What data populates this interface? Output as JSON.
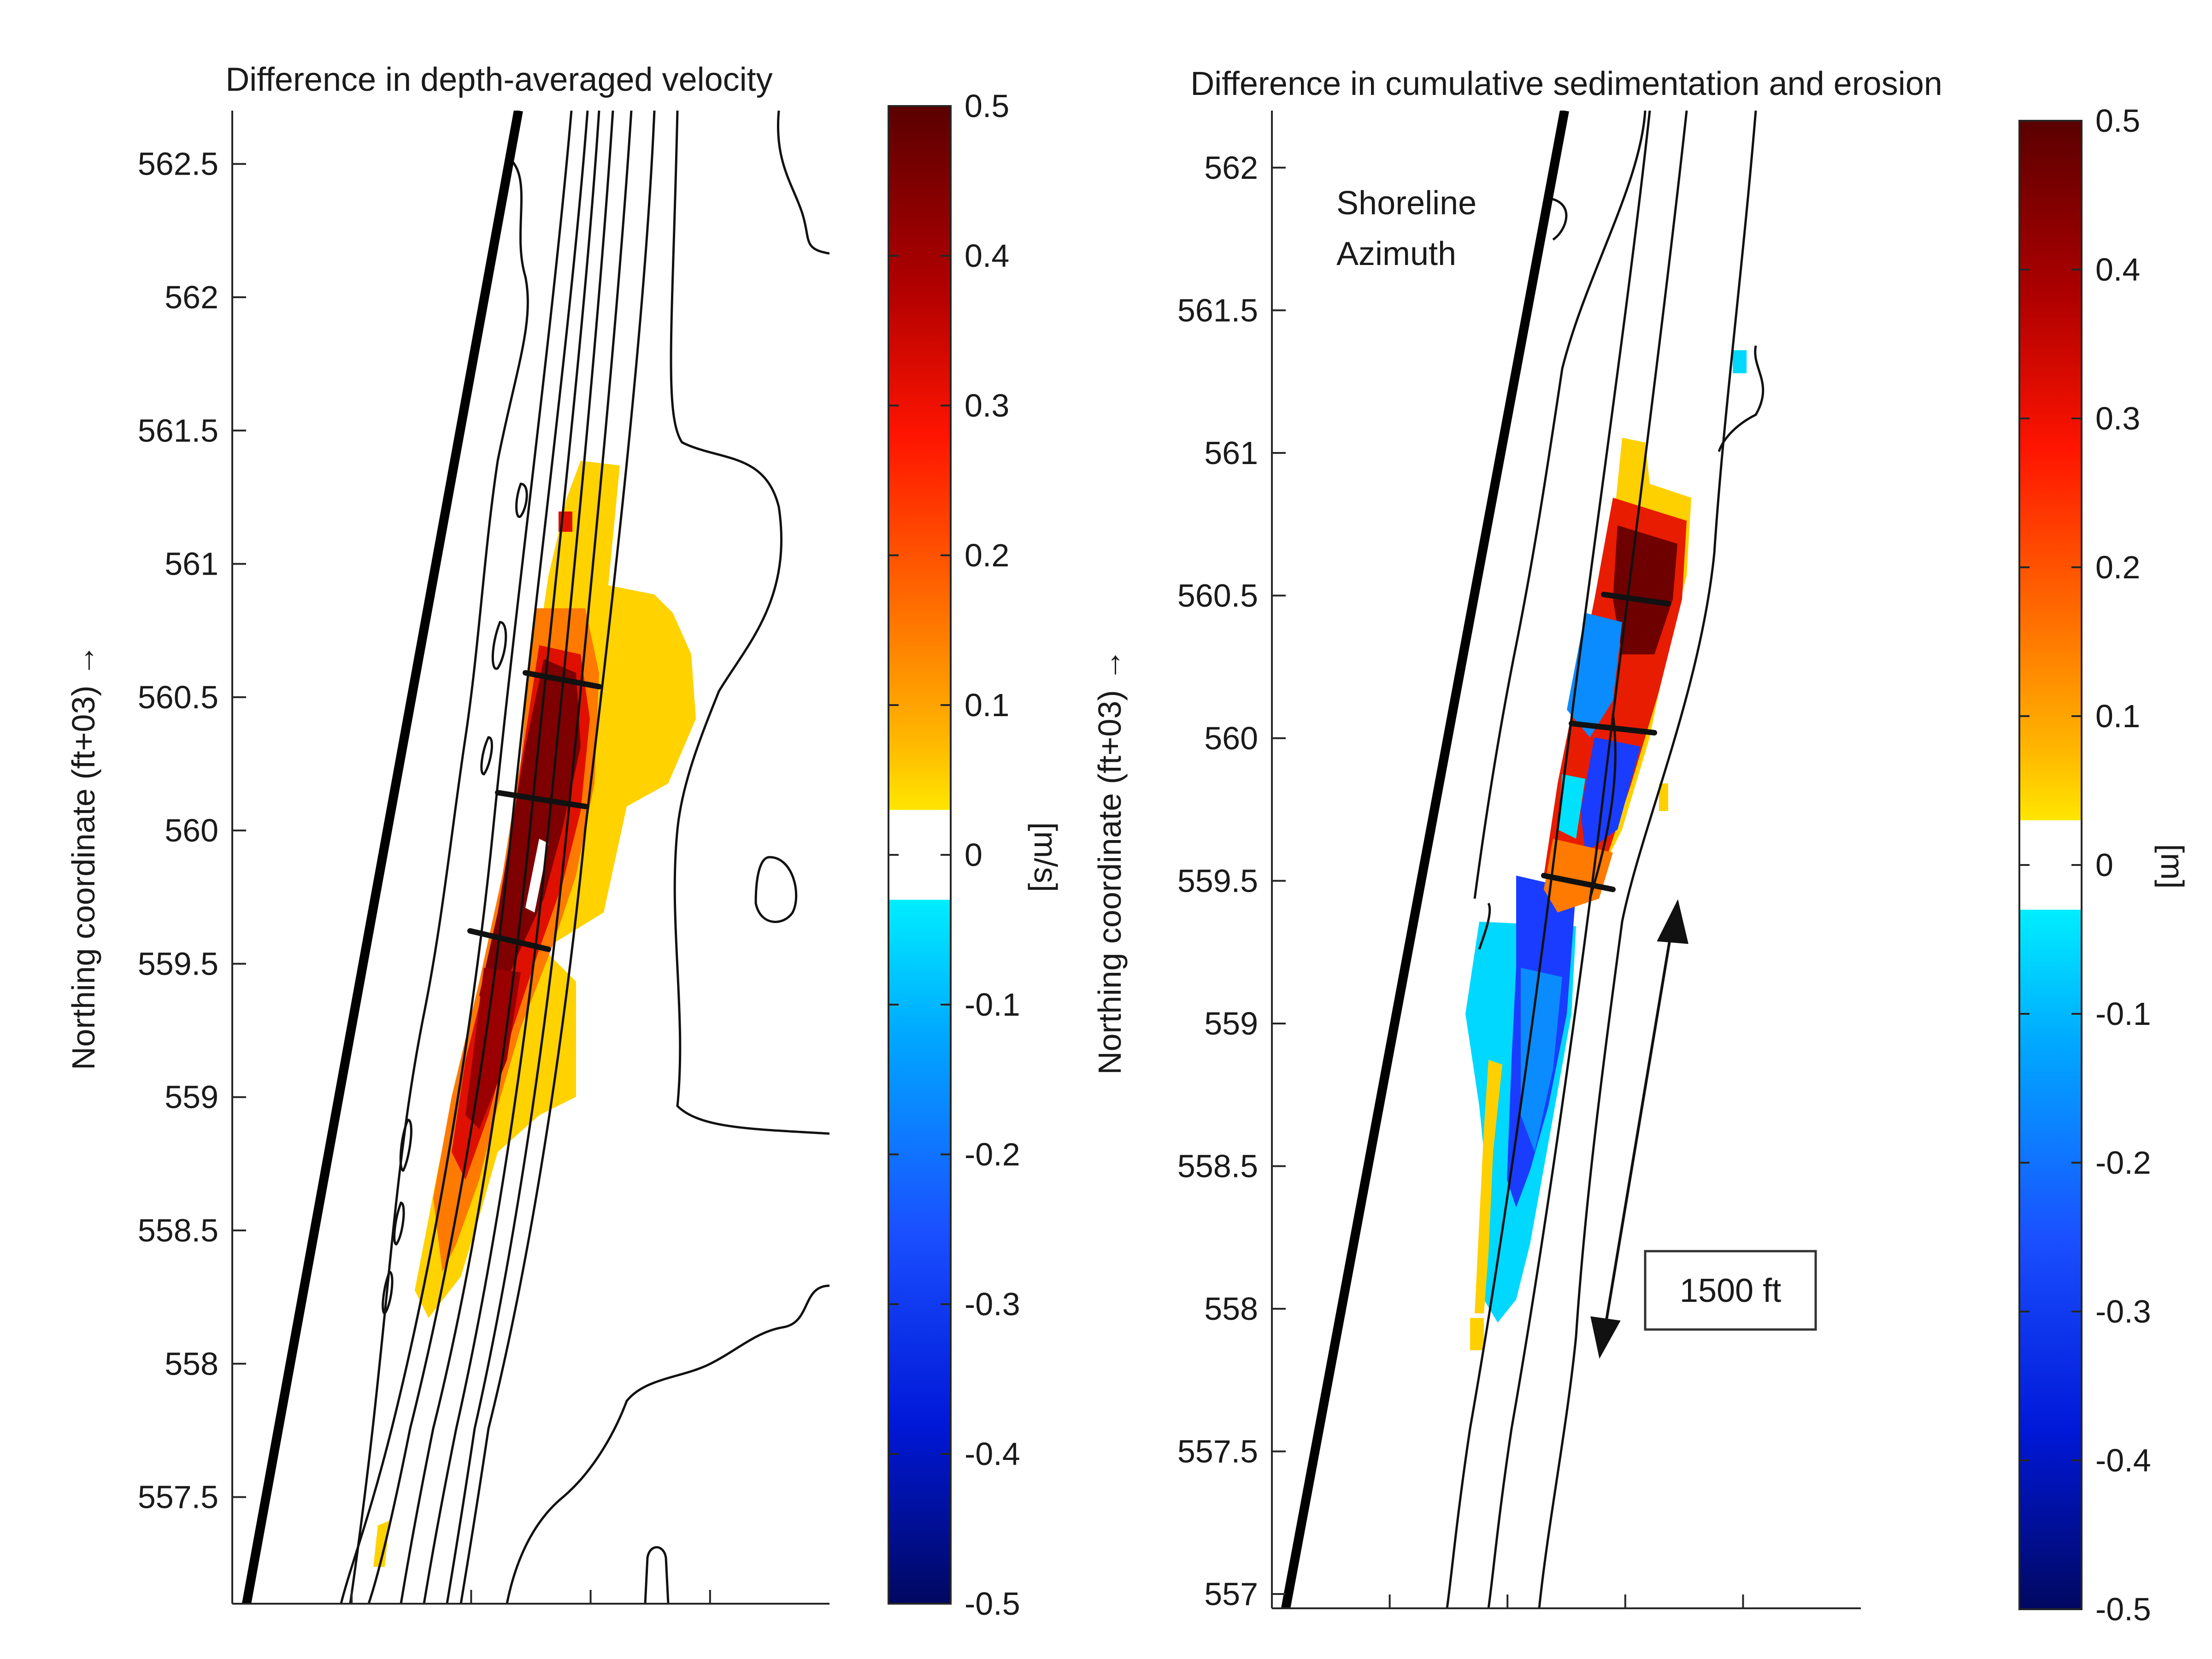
{
  "chart_data": [
    {
      "type": "heatmap",
      "title": "Difference in depth-averaged velocity",
      "xlabel": "",
      "ylabel": "Northing coordinate (ft+03) →",
      "ylim": [
        557.1,
        562.7
      ],
      "y_ticks": [
        "557.5",
        "558",
        "558.5",
        "559",
        "559.5",
        "560",
        "560.5",
        "561",
        "561.5",
        "562",
        "562.5"
      ],
      "x_tick_count": 4,
      "colorbar": {
        "label": "[m/s]",
        "range": [
          -0.5,
          0.5
        ],
        "ticks": [
          "0.5",
          "0.4",
          "0.3",
          "0.2",
          "0.1",
          "0",
          "-0.1",
          "-0.2",
          "-0.3",
          "-0.4",
          "-0.5"
        ],
        "colormap": "blue-cyan-white-yellow-red-darkred"
      },
      "region_values": [
        {
          "ymin": 558.1,
          "ymax": 561.3,
          "value_range": [
            0.05,
            0.5
          ]
        }
      ],
      "structures_y": [
        560.5,
        560.05,
        559.55
      ],
      "grid": false
    },
    {
      "type": "heatmap",
      "title": "Difference in cumulative sedimentation and erosion",
      "xlabel": "",
      "ylabel": "Northing coordinate (ft+03) →",
      "ylim": [
        556.95,
        562.2
      ],
      "y_ticks": [
        "557",
        "557.5",
        "558",
        "558.5",
        "559",
        "559.5",
        "560",
        "560.5",
        "561",
        "561.5",
        "562"
      ],
      "x_tick_count": 4,
      "colorbar": {
        "label": "[m]",
        "range": [
          -0.5,
          0.5
        ],
        "ticks": [
          "0.5",
          "0.4",
          "0.3",
          "0.2",
          "0.1",
          "0",
          "-0.1",
          "-0.2",
          "-0.3",
          "-0.4",
          "-0.5"
        ],
        "colormap": "blue-cyan-white-yellow-red-darkred"
      },
      "region_values": [
        {
          "ymin": 559.2,
          "ymax": 561.0,
          "value_range": [
            -0.35,
            0.5
          ]
        },
        {
          "ymin": 557.9,
          "ymax": 559.4,
          "value_range": [
            -0.35,
            -0.05
          ]
        }
      ],
      "structures_y": [
        560.5,
        560.05,
        559.5
      ],
      "annotations": {
        "shoreline_label": "Shoreline",
        "azimuth_label": "Azimuth",
        "scale_label": "1500 ft"
      },
      "grid": false
    }
  ],
  "colors": {
    "dark_red": "#6e0000",
    "red": "#e81c00",
    "orange": "#ff7a00",
    "yellow": "#ffd500",
    "cyan": "#00e8ff",
    "blue": "#1450ff",
    "dark_blue": "#000a8c",
    "shoreline": "#000000",
    "contour": "#000000"
  }
}
